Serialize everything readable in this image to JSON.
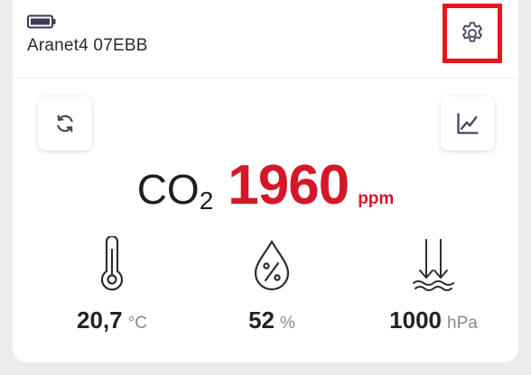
{
  "device": {
    "name": "Aranet4 07EBB",
    "battery_icon": "battery-full-icon"
  },
  "header": {
    "settings_icon": "gear-icon",
    "highlight_color": "#e8141e"
  },
  "actions": {
    "refresh_icon": "refresh-icon",
    "chart_icon": "line-chart-icon"
  },
  "co2": {
    "label": "CO",
    "subscript": "2",
    "value": "1960",
    "unit": "ppm",
    "color": "#d3182a"
  },
  "metrics": [
    {
      "icon": "thermometer-icon",
      "value": "20,7",
      "unit": "°C"
    },
    {
      "icon": "humidity-drop-icon",
      "value": "52",
      "unit": "%"
    },
    {
      "icon": "pressure-icon",
      "value": "1000",
      "unit": "hPa"
    }
  ]
}
